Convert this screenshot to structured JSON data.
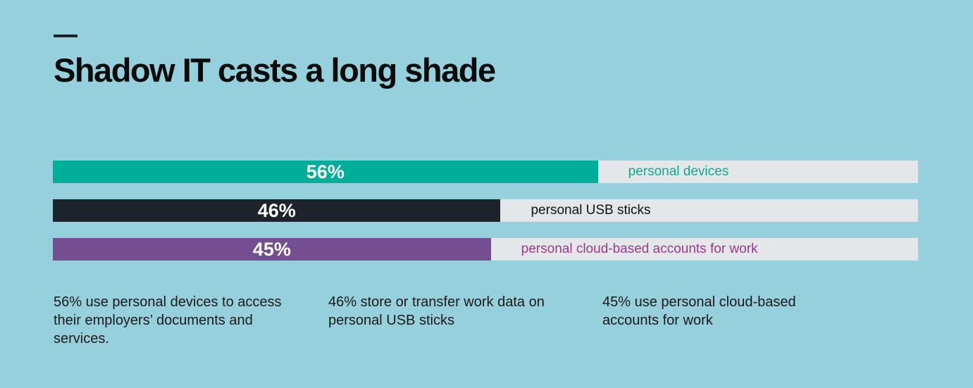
{
  "header": {
    "title": "Shadow IT casts a long shade"
  },
  "chart_data": {
    "type": "bar",
    "orientation": "horizontal",
    "xlim": [
      0,
      100
    ],
    "unit": "%",
    "categories": [
      "personal devices",
      "personal USB sticks",
      "personal cloud-based accounts for work"
    ],
    "values": [
      56,
      46,
      45
    ],
    "value_labels": [
      "56%",
      "46%",
      "45%"
    ],
    "colors": [
      "#00ae9a",
      "#1c232b",
      "#734f92"
    ],
    "label_colors": [
      "#12a88e",
      "#111111",
      "#9a3a8a"
    ],
    "track_color": "#e3e7e9"
  },
  "captions": [
    "56% use personal devices to access their employers’ documents and services.",
    "46% store or transfer work data on personal USB sticks",
    "45% use personal cloud-based accounts for work"
  ]
}
